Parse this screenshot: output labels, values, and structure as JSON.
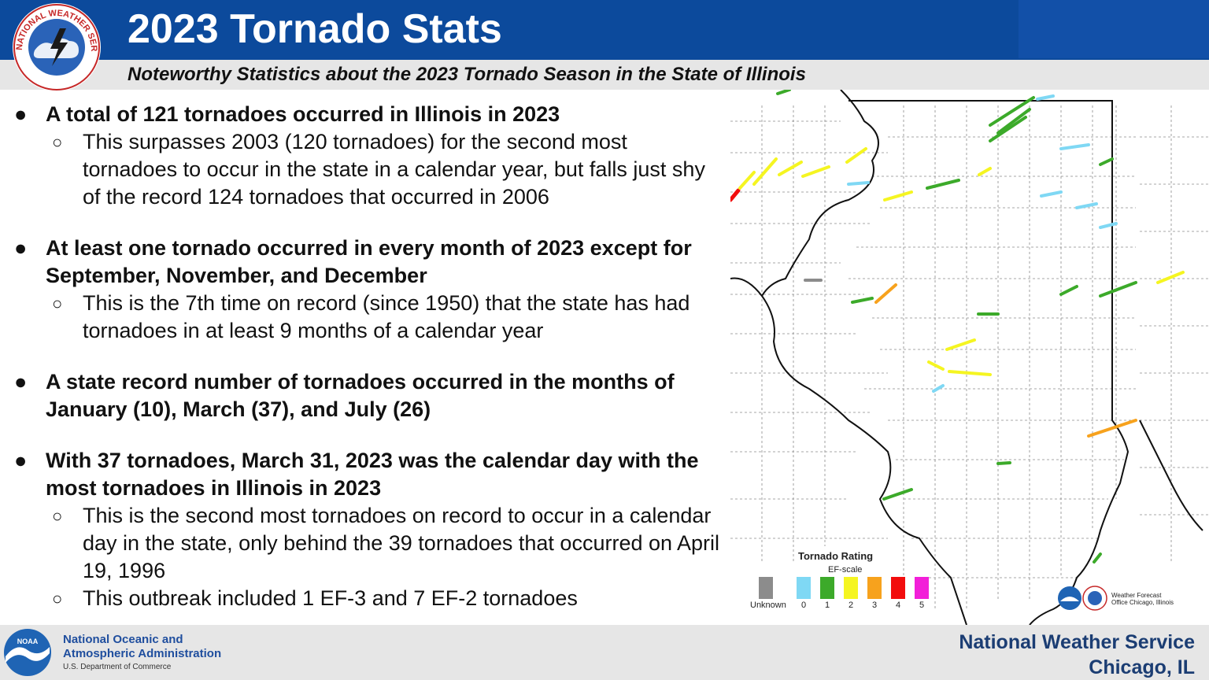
{
  "header": {
    "title": "2023 Tornado Stats",
    "subtitle": "Noteworthy Statistics about the 2023 Tornado Season in the State of Illinois",
    "logo_text": "NATIONAL WEATHER SERVICE",
    "primary_color": "#0c4a9c"
  },
  "bullets": [
    {
      "text": "A total of 121 tornadoes occurred in Illinois in 2023",
      "subs": [
        "This surpasses 2003 (120 tornadoes) for the second most tornadoes to occur in the state in a calendar year, but falls just shy of the record 124 tornadoes that occurred in 2006"
      ]
    },
    {
      "text": "At least one tornado occurred in every month of 2023 except for September, November, and December",
      "subs": [
        "This is the 7th time on record (since 1950) that the state has had tornadoes in at least 9 months of a calendar year"
      ]
    },
    {
      "text": "A state record number of tornadoes occurred in the months of January (10), March (37), and July (26)",
      "subs": []
    },
    {
      "text": "With 37 tornadoes, March 31, 2023 was the calendar day with the most tornadoes in Illinois in 2023",
      "subs": [
        "This is the second most tornadoes on record to occur in a calendar day in the state, only behind the 39 tornadoes that occurred on April 19, 1996",
        "This outbreak included 1 EF-3 and 7 EF-2 tornadoes"
      ]
    }
  ],
  "map": {
    "legend_title": "Tornado Rating",
    "legend_subtitle": "EF-scale",
    "legend": [
      {
        "label": "Unknown",
        "color": "#8c8c8c"
      },
      {
        "label": "0",
        "color": "#7fd8f4"
      },
      {
        "label": "1",
        "color": "#3caa2a"
      },
      {
        "label": "2",
        "color": "#f5f521"
      },
      {
        "label": "3",
        "color": "#f7a21d"
      },
      {
        "label": "4",
        "color": "#f20d0d"
      },
      {
        "label": "5",
        "color": "#f21fd8"
      }
    ],
    "wfo_text": "Weather Forecast Office Chicago, Illinois"
  },
  "footer": {
    "noaa_line1": "National Oceanic and",
    "noaa_line2": "Atmospheric Administration",
    "noaa_dept": "U.S. Department of Commerce",
    "noaa_logo_text": "NOAA",
    "nws_line1": "National Weather Service",
    "nws_line2": "Chicago, IL"
  }
}
